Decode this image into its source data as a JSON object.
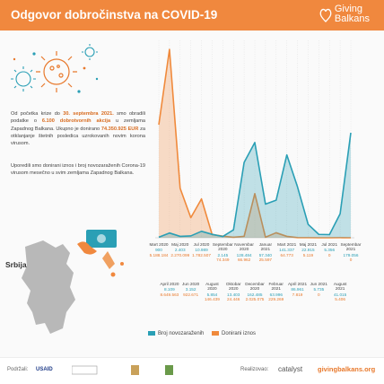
{
  "header": {
    "title": "Odgovor dobročinstva na COVID-19",
    "logo": [
      "Giving",
      "Balkans"
    ]
  },
  "intro": [
    "Od početka krize do ",
    "30. septembra 2021.",
    " smo obradili podatke o ",
    "6.100 dobrotvornih akcija",
    " u zemljama Zapadnog Balkana. Ukupno je donirano ",
    "74.350.925 EUR",
    " za otklanjanje štetnih posledica uzrokovanih novim korona virusom."
  ],
  "compare": "Uporedili smo donirani iznos i broj novozaraženih Corona-19 virusom mesečno u svim zemljama Zapadnog Balkana.",
  "map_label": "Srbija",
  "chart_data": {
    "type": "area",
    "categories": [
      "Mart 2020",
      "April 2020",
      "Maj 2020",
      "Jun 2020",
      "Jul 2020",
      "August 2020",
      "Septembar 2020",
      "Oktobar 2020",
      "Novembar 2020",
      "Decembar 2020",
      "Januar 2021",
      "Februar 2021",
      "Mart 2021",
      "April 2021",
      "Maj 2021",
      "Jun 2021",
      "Jul 2021",
      "August 2021",
      "Septembar 2021"
    ],
    "series": [
      {
        "name": "Broj novozaraženih",
        "color": "#2a9fb5",
        "values": [
          900,
          8109,
          2403,
          3152,
          10989,
          5854,
          2145,
          13403,
          128484,
          162485,
          57340,
          63996,
          141337,
          86961,
          22915,
          5735,
          5356,
          41015,
          179056
        ],
        "value_labels": [
          "900",
          "8.109",
          "2.403",
          "3.152",
          "10.989",
          "5.854",
          "2.145",
          "13.403",
          "128.484",
          "162.485",
          "57.340",
          "63.996",
          "141.337",
          "86.961",
          "22.915",
          "5.735",
          "5.356",
          "41.015",
          "179.056"
        ]
      },
      {
        "name": "Donirani iznos",
        "color": "#f08a3c",
        "values": [
          5188184,
          8649563,
          2270099,
          922671,
          1782507,
          146439,
          74349,
          24446,
          66962,
          2025075,
          25597,
          229269,
          64773,
          7819,
          5119,
          0,
          0,
          5406,
          0
        ],
        "value_labels": [
          "5.188.184",
          "8.649.563",
          "2.270.099",
          "922.671",
          "1.782.507",
          "146.439",
          "74.349",
          "24.446",
          "66.962",
          "2.025.075",
          "25.597",
          "229.269",
          "64.773",
          "7.819",
          "5.119",
          "0",
          "0",
          "5.406",
          "0"
        ]
      }
    ]
  },
  "footer": {
    "supported": "Podržali:",
    "usaid": "USAID",
    "realized": "Realizovao:",
    "catalyst": "catalyst",
    "site": "givingbalkans.org"
  }
}
